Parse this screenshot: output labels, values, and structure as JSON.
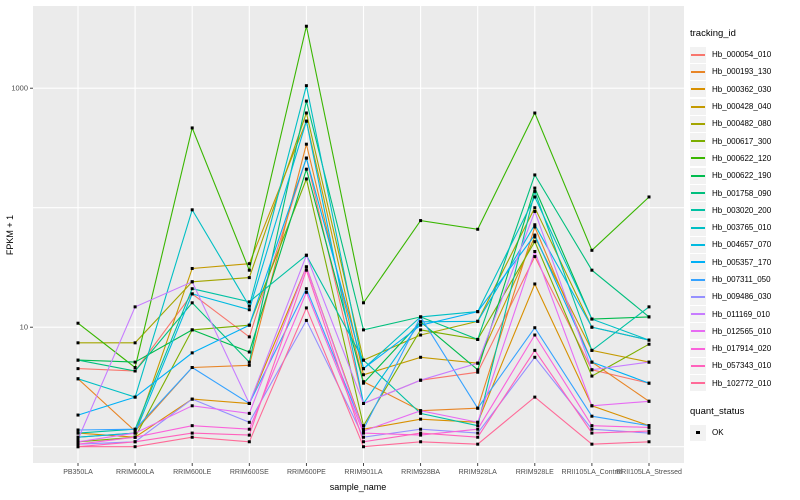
{
  "chart_data": {
    "type": "line",
    "title": "",
    "xlabel": "sample_name",
    "ylabel": "FPKM + 1",
    "y_scale": "log10",
    "ylim": [
      0.73,
      4870
    ],
    "y_ticks": [
      {
        "v": 10,
        "label": "10"
      },
      {
        "v": 1000,
        "label": "1000"
      }
    ],
    "y_gridlines": [
      1,
      10,
      100,
      1000
    ],
    "grid": "on",
    "legend_position": "right",
    "x_categories": [
      "PB350LA",
      "RRIM600LA",
      "RRIM600LE",
      "RRIM600SE",
      "RRIM600PE",
      "RRIM901LA",
      "RRIM928BA",
      "RRIM928LA",
      "RRIM928LE",
      "RRII105LA_Control",
      "RRII105LA_Stressed"
    ],
    "legend": {
      "title": "tracking_id"
    },
    "quant_legend": {
      "title": "quant_status",
      "items": [
        {
          "label": "OK"
        }
      ]
    },
    "point_color": "#000000",
    "series": [
      {
        "name": "Hb_000054_010",
        "color": "#F8766D",
        "values": [
          4.5,
          4.3,
          19,
          8.3,
          260,
          2.3,
          3.6,
          4.2,
          39,
          4.4,
          3.4
        ]
      },
      {
        "name": "Hb_000193_130",
        "color": "#E88526",
        "values": [
          3.7,
          1.35,
          4.6,
          4.8,
          340,
          3.5,
          2.0,
          2.1,
          69,
          5.1,
          2.4
        ]
      },
      {
        "name": "Hb_000362_030",
        "color": "#D89000",
        "values": [
          1.3,
          1.2,
          2.5,
          2.3,
          32,
          1.4,
          1.7,
          1.6,
          23,
          2.2,
          1.5
        ]
      },
      {
        "name": "Hb_000428_040",
        "color": "#C49A00",
        "values": [
          1.2,
          1.3,
          31,
          34,
          530,
          4.0,
          5.6,
          5.0,
          57,
          6.4,
          5.1
        ]
      },
      {
        "name": "Hb_000482_080",
        "color": "#A3A500",
        "values": [
          7.4,
          7.4,
          24,
          26,
          620,
          5.3,
          8.6,
          11.2,
          100,
          10.0,
          7.8
        ]
      },
      {
        "name": "Hb_000617_300",
        "color": "#7CAE00",
        "values": [
          1.1,
          1.2,
          9.5,
          10.4,
          174,
          1.5,
          9.5,
          7.9,
          52,
          3.9,
          7.2
        ]
      },
      {
        "name": "Hb_000622_120",
        "color": "#39B600",
        "values": [
          10.8,
          4.6,
          465,
          30,
          3300,
          16,
          78,
          66,
          620,
          44,
          123
        ]
      },
      {
        "name": "Hb_000622_190",
        "color": "#00BB4E",
        "values": [
          5.3,
          5.1,
          9.5,
          6.2,
          210,
          3.4,
          11.1,
          4.4,
          146,
          11.7,
          12.2
        ]
      },
      {
        "name": "Hb_001758_090",
        "color": "#00BF7D",
        "values": [
          5.3,
          4.3,
          16,
          5.1,
          780,
          9.5,
          12.2,
          7.9,
          188,
          30,
          12.2
        ]
      },
      {
        "name": "Hb_003020_200",
        "color": "#00C1A3",
        "values": [
          1.3,
          1.4,
          21,
          16.3,
          40,
          5.3,
          1.9,
          1.5,
          137,
          6.4,
          14.8
        ]
      },
      {
        "name": "Hb_003765_010",
        "color": "#00BFC4",
        "values": [
          3.7,
          2.6,
          96,
          15,
          1050,
          4.5,
          12.2,
          13.5,
          123,
          11.7,
          7.8
        ]
      },
      {
        "name": "Hb_004657_070",
        "color": "#00BAE0",
        "values": [
          1.2,
          1.3,
          19,
          14,
          530,
          2.3,
          11.1,
          11.2,
          72,
          10.0,
          7.8
        ]
      },
      {
        "name": "Hb_005357_170",
        "color": "#00B0F6",
        "values": [
          1.84,
          2.6,
          6.1,
          10.4,
          260,
          4.5,
          10.4,
          13.5,
          59,
          5.1,
          3.4
        ]
      },
      {
        "name": "Hb_007311_050",
        "color": "#35A2FF",
        "values": [
          1.38,
          1.4,
          4.6,
          2.3,
          21,
          1.4,
          12.2,
          2.1,
          9.9,
          1.8,
          1.5
        ]
      },
      {
        "name": "Hb_009486_030",
        "color": "#9590FF",
        "values": [
          1.05,
          1.1,
          2.5,
          1.6,
          11.4,
          1.2,
          1.4,
          1.3,
          5.6,
          1.4,
          1.3
        ]
      },
      {
        "name": "Hb_011169_010",
        "color": "#C77CFF",
        "values": [
          1.15,
          14.8,
          24,
          2.3,
          40,
          2.3,
          3.6,
          5.0,
          93,
          4.4,
          5.1
        ]
      },
      {
        "name": "Hb_012565_010",
        "color": "#E76BF3",
        "values": [
          1.1,
          1.3,
          2.2,
          1.9,
          32,
          1.35,
          2.0,
          1.6,
          43,
          2.2,
          2.4
        ]
      },
      {
        "name": "Hb_017914_020",
        "color": "#FA62DB",
        "values": [
          1.05,
          1.2,
          1.5,
          1.4,
          19.6,
          1.3,
          1.25,
          1.4,
          8.6,
          1.5,
          1.45
        ]
      },
      {
        "name": "Hb_057343_010",
        "color": "#FF62BC",
        "values": [
          1.0,
          1.1,
          1.3,
          1.25,
          30,
          1.1,
          1.3,
          1.2,
          6.4,
          1.3,
          1.35
        ]
      },
      {
        "name": "Hb_102772_010",
        "color": "#FF6A98",
        "values": [
          1.0,
          1.0,
          1.2,
          1.1,
          14.5,
          1.0,
          1.1,
          1.05,
          2.6,
          1.05,
          1.1
        ]
      }
    ]
  },
  "colors": {
    "outer_bg": "#FFFFFF",
    "panel_bg": "#EBEBEB",
    "gridline": "#FFFFFF",
    "tick_mark": "#333333",
    "axis_text": "#4D4D4D",
    "title_text": "#000000",
    "legend_key_bg": "#F2F2F2",
    "point": "#000000"
  }
}
